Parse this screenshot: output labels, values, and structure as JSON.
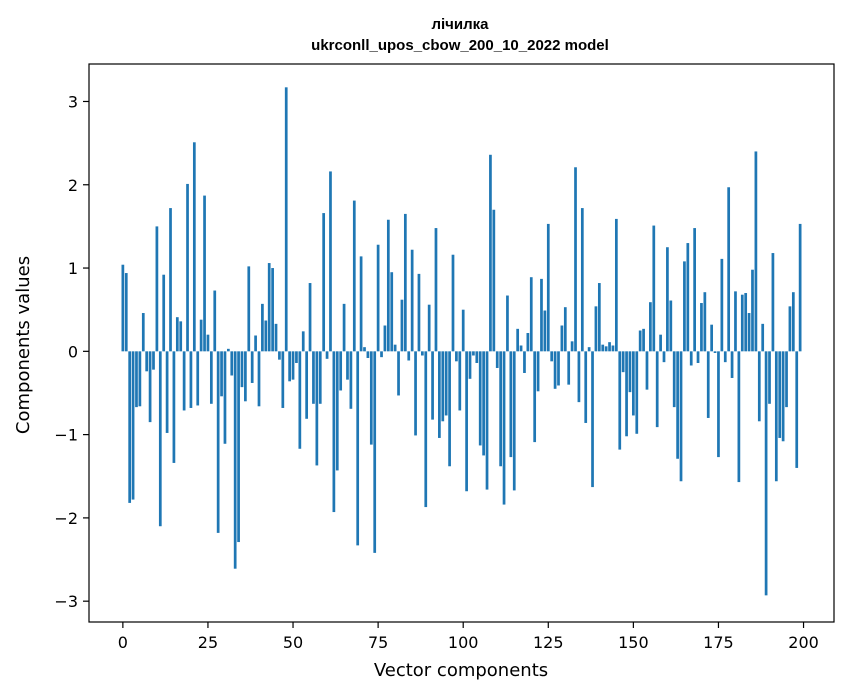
{
  "chart_data": {
    "type": "bar",
    "title": "лічилка",
    "subtitle": "ukrconll_upos_cbow_200_10_2022 model",
    "xlabel": "Vector components",
    "ylabel": "Components values",
    "xlim": [
      -9.95,
      208.95
    ],
    "ylim": [
      -3.25,
      3.45
    ],
    "xticks": [
      0,
      25,
      50,
      75,
      100,
      125,
      150,
      175,
      200
    ],
    "xtick_labels": [
      "0",
      "25",
      "50",
      "75",
      "100",
      "125",
      "150",
      "175",
      "200"
    ],
    "yticks": [
      -3,
      -2,
      -1,
      0,
      1,
      2,
      3
    ],
    "ytick_labels": [
      "−3",
      "−2",
      "−1",
      "0",
      "1",
      "2",
      "3"
    ],
    "grid": false,
    "bar_color": "#1f77b4",
    "x": [
      0,
      1,
      2,
      3,
      4,
      5,
      6,
      7,
      8,
      9,
      10,
      11,
      12,
      13,
      14,
      15,
      16,
      17,
      18,
      19,
      20,
      21,
      22,
      23,
      24,
      25,
      26,
      27,
      28,
      29,
      30,
      31,
      32,
      33,
      34,
      35,
      36,
      37,
      38,
      39,
      40,
      41,
      42,
      43,
      44,
      45,
      46,
      47,
      48,
      49,
      50,
      51,
      52,
      53,
      54,
      55,
      56,
      57,
      58,
      59,
      60,
      61,
      62,
      63,
      64,
      65,
      66,
      67,
      68,
      69,
      70,
      71,
      72,
      73,
      74,
      75,
      76,
      77,
      78,
      79,
      80,
      81,
      82,
      83,
      84,
      85,
      86,
      87,
      88,
      89,
      90,
      91,
      92,
      93,
      94,
      95,
      96,
      97,
      98,
      99,
      100,
      101,
      102,
      103,
      104,
      105,
      106,
      107,
      108,
      109,
      110,
      111,
      112,
      113,
      114,
      115,
      116,
      117,
      118,
      119,
      120,
      121,
      122,
      123,
      124,
      125,
      126,
      127,
      128,
      129,
      130,
      131,
      132,
      133,
      134,
      135,
      136,
      137,
      138,
      139,
      140,
      141,
      142,
      143,
      144,
      145,
      146,
      147,
      148,
      149,
      150,
      151,
      152,
      153,
      154,
      155,
      156,
      157,
      158,
      159,
      160,
      161,
      162,
      163,
      164,
      165,
      166,
      167,
      168,
      169,
      170,
      171,
      172,
      173,
      174,
      175,
      176,
      177,
      178,
      179,
      180,
      181,
      182,
      183,
      184,
      185,
      186,
      187,
      188,
      189,
      190,
      191,
      192,
      193,
      194,
      195,
      196,
      197,
      198,
      199
    ],
    "values": [
      1.04,
      0.94,
      -1.82,
      -1.78,
      -0.67,
      -0.66,
      0.46,
      -0.24,
      -0.85,
      -0.22,
      1.5,
      -2.1,
      0.92,
      -0.98,
      1.72,
      -1.34,
      0.41,
      0.36,
      -0.71,
      2.01,
      -0.68,
      2.51,
      -0.65,
      0.38,
      1.87,
      0.2,
      -0.63,
      0.73,
      -2.18,
      -0.54,
      -1.11,
      0.03,
      -0.29,
      -2.61,
      -2.29,
      -0.43,
      -0.6,
      1.02,
      -0.38,
      0.19,
      -0.66,
      0.57,
      0.37,
      1.06,
      1.0,
      0.33,
      -0.1,
      -0.68,
      3.17,
      -0.36,
      -0.34,
      -0.14,
      -1.17,
      0.24,
      -0.81,
      0.82,
      -0.63,
      -1.37,
      -0.63,
      1.66,
      -0.09,
      2.16,
      -1.93,
      -1.43,
      -0.47,
      0.57,
      -0.34,
      -0.69,
      1.81,
      -2.33,
      1.14,
      0.05,
      -0.08,
      -1.12,
      -2.42,
      1.28,
      -0.07,
      0.31,
      1.58,
      0.95,
      0.08,
      -0.53,
      0.62,
      1.65,
      -0.11,
      1.22,
      -1.01,
      0.93,
      -0.05,
      -1.87,
      0.56,
      -0.82,
      1.48,
      -1.04,
      -0.84,
      -0.77,
      -1.38,
      1.16,
      -0.12,
      -0.71,
      0.5,
      -1.68,
      -0.33,
      -0.05,
      -0.14,
      -1.13,
      -1.25,
      -1.66,
      2.36,
      1.7,
      -0.2,
      -1.38,
      -1.84,
      0.67,
      -1.27,
      -1.67,
      0.27,
      0.07,
      -0.26,
      0.22,
      0.89,
      -1.09,
      -0.48,
      0.87,
      0.49,
      1.53,
      -0.12,
      -0.45,
      -0.41,
      0.31,
      0.53,
      -0.4,
      0.12,
      2.21,
      -0.61,
      1.72,
      -0.86,
      0.05,
      -1.63,
      0.54,
      0.82,
      0.08,
      0.06,
      0.11,
      0.07,
      1.59,
      -1.18,
      -0.25,
      -1.02,
      -0.49,
      -0.77,
      -0.99,
      0.25,
      0.27,
      -0.46,
      0.59,
      1.51,
      -0.91,
      0.2,
      -0.13,
      1.25,
      0.61,
      -0.67,
      -1.29,
      -1.56,
      1.08,
      1.3,
      -0.17,
      1.48,
      -0.14,
      0.58,
      0.71,
      -0.8,
      0.32,
      -0.02,
      -1.27,
      1.11,
      -0.13,
      1.97,
      -0.32,
      0.72,
      -1.57,
      0.68,
      0.7,
      0.46,
      0.98,
      2.4,
      -0.84,
      0.33,
      -2.93,
      -0.63,
      1.18,
      -1.56,
      -1.04,
      -1.08,
      -0.67,
      0.54,
      0.71,
      -1.4,
      1.53
    ]
  }
}
